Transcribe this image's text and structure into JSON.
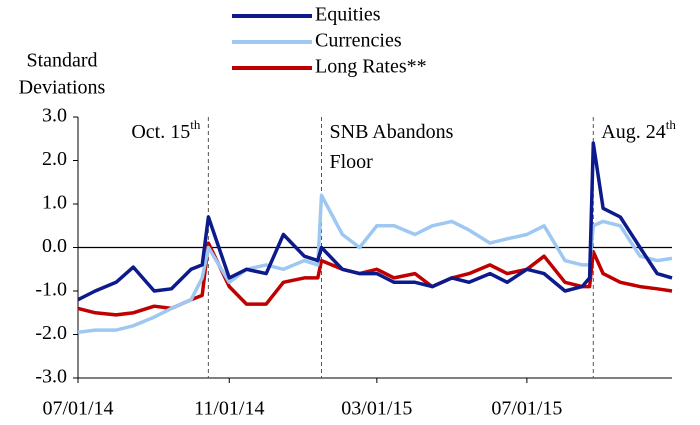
{
  "chart_data": {
    "type": "line",
    "y_label": [
      "Standard",
      "Deviations"
    ],
    "x": [
      "07/01/14",
      "07/15/14",
      "08/01/14",
      "08/15/14",
      "09/01/14",
      "09/15/14",
      "10/01/14",
      "10/10/14",
      "10/15/14",
      "11/01/14",
      "11/15/14",
      "12/01/14",
      "12/15/14",
      "01/01/15",
      "01/12/15",
      "01/15/15",
      "02/01/15",
      "02/15/15",
      "03/01/15",
      "03/15/15",
      "04/01/15",
      "04/15/15",
      "05/01/15",
      "05/15/15",
      "06/01/15",
      "06/15/15",
      "07/01/15",
      "07/15/15",
      "08/01/15",
      "08/15/15",
      "08/21/15",
      "08/24/15",
      "09/01/15",
      "09/15/15",
      "10/01/15",
      "10/15/15",
      "10/27/15"
    ],
    "series": [
      {
        "name": "Equities",
        "color": "#0d1a8c",
        "values": [
          -1.2,
          -1.0,
          -0.8,
          -0.45,
          -1.0,
          -0.95,
          -0.5,
          -0.4,
          0.7,
          -0.7,
          -0.5,
          -0.6,
          0.3,
          -0.2,
          -0.3,
          0.0,
          -0.5,
          -0.6,
          -0.6,
          -0.8,
          -0.8,
          -0.9,
          -0.7,
          -0.8,
          -0.6,
          -0.8,
          -0.5,
          -0.6,
          -1.0,
          -0.9,
          -0.7,
          2.4,
          0.9,
          0.7,
          0.0,
          -0.6,
          -0.7
        ]
      },
      {
        "name": "Currencies",
        "color": "#9ec8f2",
        "values": [
          -1.95,
          -1.9,
          -1.9,
          -1.8,
          -1.6,
          -1.4,
          -1.2,
          -0.7,
          0.0,
          -0.8,
          -0.5,
          -0.4,
          -0.5,
          -0.3,
          -0.4,
          1.2,
          0.3,
          0.0,
          0.5,
          0.5,
          0.3,
          0.5,
          0.6,
          0.4,
          0.1,
          0.2,
          0.3,
          0.5,
          -0.3,
          -0.4,
          -0.4,
          0.5,
          0.6,
          0.5,
          -0.2,
          -0.3,
          -0.25
        ]
      },
      {
        "name": "Long Rates**",
        "color": "#c00000",
        "values": [
          -1.4,
          -1.5,
          -1.55,
          -1.5,
          -1.35,
          -1.4,
          -1.2,
          -1.1,
          0.1,
          -0.9,
          -1.3,
          -1.3,
          -0.8,
          -0.7,
          -0.7,
          -0.3,
          -0.5,
          -0.6,
          -0.5,
          -0.7,
          -0.6,
          -0.9,
          -0.7,
          -0.6,
          -0.4,
          -0.6,
          -0.5,
          -0.2,
          -0.8,
          -0.9,
          -0.9,
          -0.1,
          -0.6,
          -0.8,
          -0.9,
          -0.95,
          -1.0
        ]
      }
    ],
    "annotations": [
      {
        "x": "10/15/14",
        "lines": [
          "Oct. 15"
        ],
        "sup": "th"
      },
      {
        "x": "01/15/15",
        "lines": [
          "SNB Abandons",
          "Floor"
        ]
      },
      {
        "x": "08/24/15",
        "lines": [
          "Aug. 24"
        ],
        "sup": "th"
      }
    ],
    "xlim": [
      "07/01/14",
      "10/27/15"
    ],
    "xticks": [
      "07/01/14",
      "11/01/14",
      "03/01/15",
      "07/01/15"
    ],
    "ylim": [
      -3,
      3
    ],
    "yticks": [
      {
        "value": -3,
        "label": "-3.0"
      },
      {
        "value": -2,
        "label": "-2.0"
      },
      {
        "value": -1,
        "label": "-1.0"
      },
      {
        "value": 0,
        "label": "0.0"
      },
      {
        "value": 1,
        "label": "1.0"
      },
      {
        "value": 2,
        "label": "2.0"
      },
      {
        "value": 3,
        "label": "3.0"
      }
    ],
    "grid": false
  }
}
